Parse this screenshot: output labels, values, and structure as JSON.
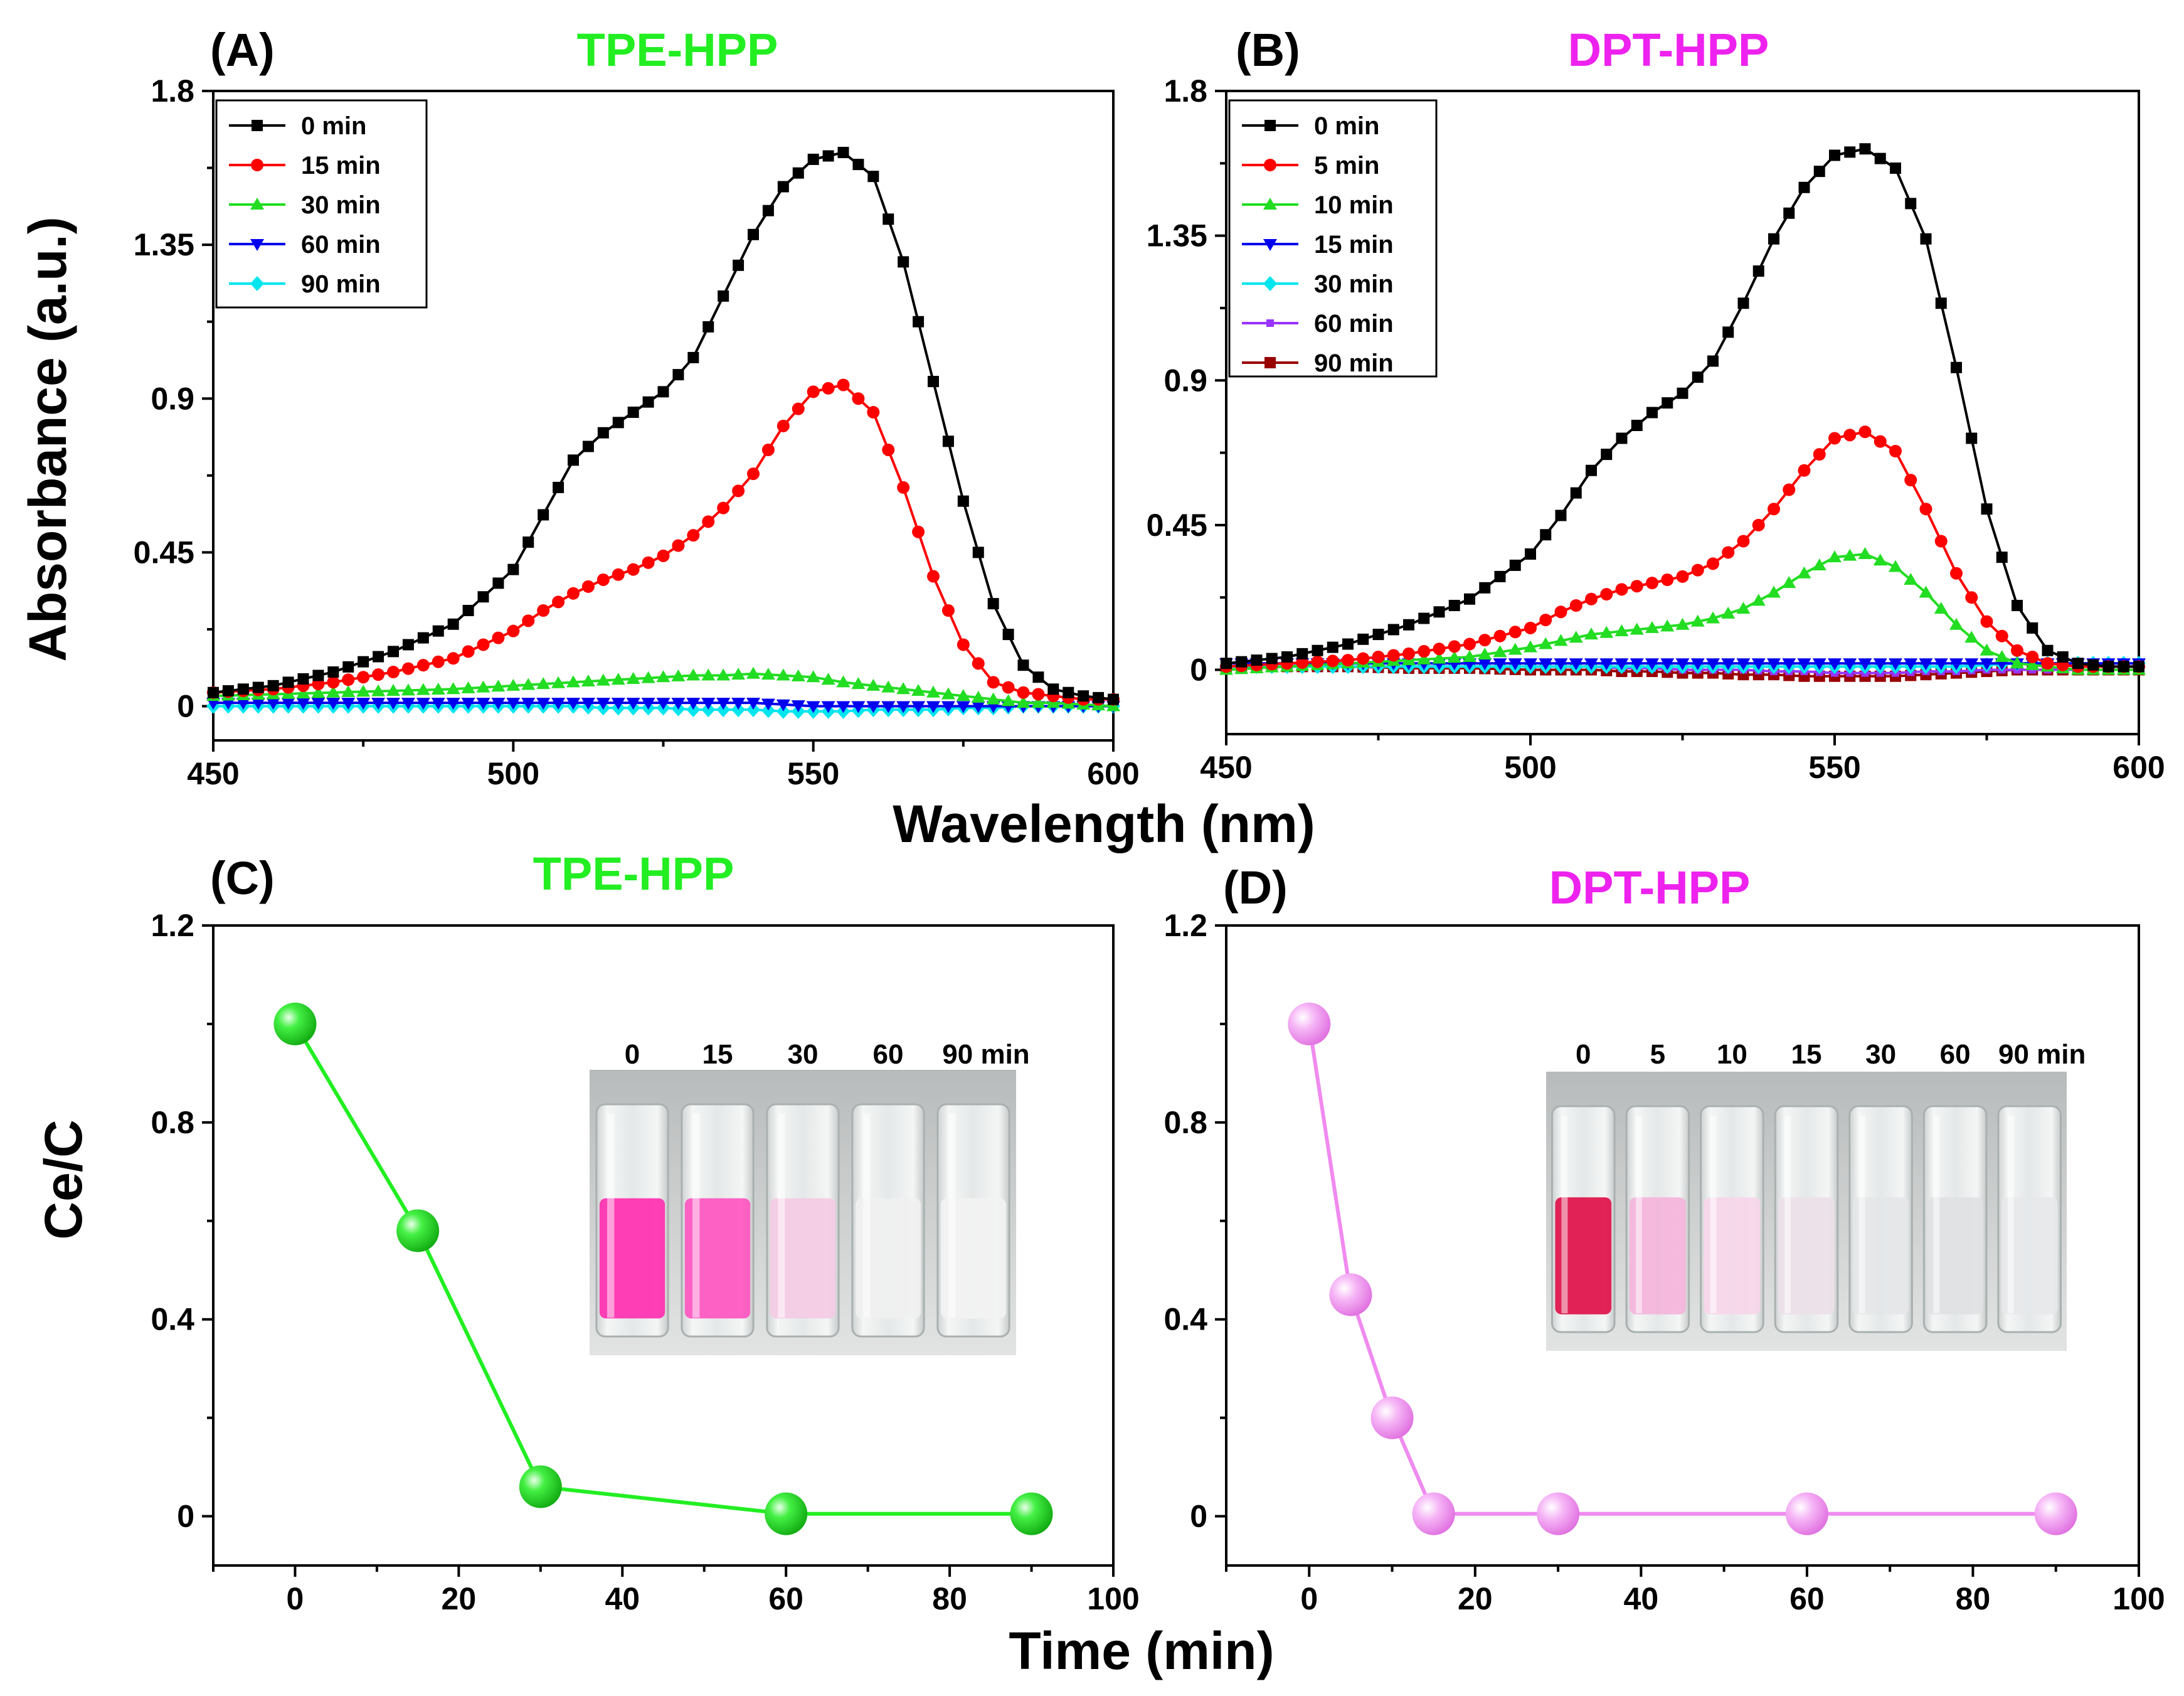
{
  "figure": {
    "shared_xlabel_top": "Wavelength (nm)",
    "shared_xlabel_bottom": "Time (min)",
    "ylabel_top": "Absorbance (a.u.)",
    "ylabel_bottom": "Ce/C"
  },
  "colors": {
    "tpe_title": "#22ee22",
    "dpt_title": "#ee22ee",
    "tpe_line": "#22ee22",
    "dpt_line": "#f08af0"
  },
  "chart_data": [
    {
      "panel": "(A)",
      "type": "line",
      "title": "TPE-HPP",
      "xlabel": "Wavelength (nm)",
      "ylabel": "Absorbance (a.u.)",
      "xlim": [
        450,
        600
      ],
      "ylim": [
        -0.1,
        1.8
      ],
      "xticks": [
        "450",
        "500",
        "550",
        "600"
      ],
      "yticks": [
        "0",
        "0.45",
        "0.9",
        "1.35",
        "1.8"
      ],
      "legend_position": "top-left",
      "x": [
        450,
        460,
        470,
        480,
        490,
        500,
        505,
        510,
        515,
        520,
        525,
        530,
        535,
        540,
        545,
        550,
        555,
        560,
        565,
        570,
        575,
        580,
        585,
        590,
        595,
        600
      ],
      "series": [
        {
          "name": "0 min",
          "color": "#000000",
          "marker": "square",
          "values": [
            0.04,
            0.06,
            0.1,
            0.16,
            0.24,
            0.4,
            0.56,
            0.72,
            0.8,
            0.86,
            0.92,
            1.02,
            1.2,
            1.38,
            1.52,
            1.6,
            1.62,
            1.55,
            1.3,
            0.95,
            0.6,
            0.3,
            0.12,
            0.05,
            0.03,
            0.02
          ]
        },
        {
          "name": "15 min",
          "color": "#ff0000",
          "marker": "circle",
          "values": [
            0.04,
            0.05,
            0.07,
            0.1,
            0.14,
            0.22,
            0.28,
            0.33,
            0.37,
            0.4,
            0.44,
            0.5,
            0.58,
            0.68,
            0.82,
            0.92,
            0.94,
            0.86,
            0.64,
            0.38,
            0.18,
            0.07,
            0.04,
            0.03,
            0.02,
            0.02
          ]
        },
        {
          "name": "30 min",
          "color": "#22dd22",
          "marker": "triangle-up",
          "values": [
            0.03,
            0.035,
            0.04,
            0.045,
            0.05,
            0.06,
            0.065,
            0.07,
            0.075,
            0.08,
            0.085,
            0.09,
            0.09,
            0.095,
            0.09,
            0.085,
            0.07,
            0.06,
            0.05,
            0.04,
            0.03,
            0.02,
            0.01,
            0.01,
            0.005,
            0.0
          ]
        },
        {
          "name": "60 min",
          "color": "#0000ee",
          "marker": "triangle-down",
          "values": [
            0.01,
            0.01,
            0.01,
            0.01,
            0.01,
            0.01,
            0.01,
            0.01,
            0.01,
            0.01,
            0.01,
            0.01,
            0.01,
            0.01,
            0.005,
            0.0,
            0.0,
            0.0,
            0.0,
            0.0,
            0.0,
            0.0,
            0.0,
            0.0,
            0.0,
            0.0
          ]
        },
        {
          "name": "90 min",
          "color": "#00e5ee",
          "marker": "diamond",
          "values": [
            0.0,
            0.0,
            0.0,
            0.0,
            0.0,
            0.0,
            0.0,
            0.0,
            -0.005,
            -0.005,
            -0.005,
            -0.01,
            -0.01,
            -0.01,
            -0.015,
            -0.015,
            -0.015,
            -0.01,
            -0.01,
            -0.01,
            -0.005,
            -0.005,
            0.0,
            0.0,
            0.0,
            0.0
          ]
        }
      ]
    },
    {
      "panel": "(B)",
      "type": "line",
      "title": "DPT-HPP",
      "xlabel": "Wavelength (nm)",
      "ylabel": "",
      "xlim": [
        450,
        600
      ],
      "ylim": [
        -0.2,
        1.8
      ],
      "xticks": [
        "450",
        "500",
        "550",
        "600"
      ],
      "yticks": [
        "0",
        "0.45",
        "0.9",
        "1.35",
        "1.8"
      ],
      "legend_position": "top-left",
      "x": [
        450,
        460,
        470,
        480,
        490,
        500,
        505,
        510,
        515,
        520,
        525,
        530,
        535,
        540,
        545,
        550,
        555,
        560,
        565,
        570,
        575,
        580,
        585,
        590,
        595,
        600
      ],
      "series": [
        {
          "name": "0 min",
          "color": "#000000",
          "marker": "square",
          "values": [
            0.02,
            0.04,
            0.08,
            0.14,
            0.22,
            0.36,
            0.48,
            0.62,
            0.72,
            0.8,
            0.86,
            0.96,
            1.14,
            1.34,
            1.5,
            1.6,
            1.62,
            1.56,
            1.34,
            0.94,
            0.5,
            0.2,
            0.06,
            0.02,
            0.01,
            0.01
          ]
        },
        {
          "name": "5 min",
          "color": "#ff0000",
          "marker": "circle",
          "values": [
            0.01,
            0.02,
            0.03,
            0.05,
            0.08,
            0.13,
            0.18,
            0.22,
            0.25,
            0.27,
            0.29,
            0.33,
            0.4,
            0.5,
            0.62,
            0.72,
            0.74,
            0.68,
            0.5,
            0.3,
            0.15,
            0.06,
            0.02,
            0.01,
            0.01,
            0.01
          ]
        },
        {
          "name": "10 min",
          "color": "#22dd22",
          "marker": "triangle-up",
          "values": [
            0.0,
            0.01,
            0.02,
            0.03,
            0.04,
            0.07,
            0.09,
            0.11,
            0.12,
            0.13,
            0.14,
            0.16,
            0.19,
            0.24,
            0.3,
            0.35,
            0.36,
            0.32,
            0.24,
            0.14,
            0.06,
            0.02,
            0.01,
            0.0,
            0.0,
            0.0
          ]
        },
        {
          "name": "15 min",
          "color": "#0000ee",
          "marker": "triangle-down",
          "values": [
            0.02,
            0.02,
            0.02,
            0.02,
            0.02,
            0.02,
            0.02,
            0.02,
            0.02,
            0.02,
            0.02,
            0.02,
            0.02,
            0.02,
            0.02,
            0.02,
            0.02,
            0.02,
            0.02,
            0.02,
            0.02,
            0.02,
            0.02,
            0.02,
            0.02,
            0.02
          ]
        },
        {
          "name": "30 min",
          "color": "#00e5ee",
          "marker": "diamond",
          "values": [
            0.01,
            0.01,
            0.01,
            0.01,
            0.01,
            0.01,
            0.01,
            0.01,
            0.01,
            0.01,
            0.01,
            0.01,
            0.01,
            0.01,
            0.01,
            0.01,
            0.01,
            0.01,
            0.01,
            0.01,
            0.015,
            0.02,
            0.02,
            0.02,
            0.02,
            0.02
          ]
        },
        {
          "name": "60 min",
          "color": "#9933ff",
          "marker": "square-small",
          "values": [
            0.01,
            0.01,
            0.01,
            0.01,
            0.01,
            0.01,
            0.01,
            0.01,
            0.005,
            0.005,
            0.0,
            0.0,
            0.0,
            -0.005,
            -0.005,
            -0.01,
            -0.01,
            -0.01,
            -0.005,
            -0.005,
            0.0,
            0.0,
            0.0,
            0.0,
            0.0,
            0.0
          ]
        },
        {
          "name": "90 min",
          "color": "#990000",
          "marker": "square",
          "values": [
            0.01,
            0.01,
            0.01,
            0.005,
            0.005,
            0.0,
            0.0,
            0.0,
            -0.005,
            -0.005,
            -0.01,
            -0.01,
            -0.015,
            -0.015,
            -0.02,
            -0.02,
            -0.02,
            -0.02,
            -0.015,
            -0.01,
            -0.005,
            0.0,
            0.0,
            0.0,
            0.0,
            0.0
          ]
        }
      ]
    },
    {
      "panel": "(C)",
      "type": "line",
      "title": "TPE-HPP",
      "xlabel": "Time (min)",
      "ylabel": "Ce/C",
      "xlim": [
        -10,
        100
      ],
      "ylim": [
        -0.1,
        1.2
      ],
      "xticks": [
        "0",
        "20",
        "40",
        "60",
        "80",
        "100"
      ],
      "yticks": [
        "0",
        "0.4",
        "0.8",
        "1.2"
      ],
      "x": [
        0,
        15,
        30,
        60,
        90
      ],
      "series": [
        {
          "name": "TPE-HPP",
          "color": "#22ee22",
          "marker": "sphere",
          "values": [
            1.0,
            0.58,
            0.06,
            0.005,
            0.005
          ]
        }
      ],
      "inset_labels": [
        "0",
        "15",
        "30",
        "60",
        "90 min"
      ]
    },
    {
      "panel": "(D)",
      "type": "line",
      "title": "DPT-HPP",
      "xlabel": "Time (min)",
      "ylabel": "",
      "xlim": [
        -10,
        100
      ],
      "ylim": [
        -0.1,
        1.2
      ],
      "xticks": [
        "0",
        "20",
        "40",
        "60",
        "80",
        "100"
      ],
      "yticks": [
        "0",
        "0.4",
        "0.8",
        "1.2"
      ],
      "x": [
        0,
        5,
        10,
        15,
        30,
        60,
        90
      ],
      "series": [
        {
          "name": "DPT-HPP",
          "color": "#f08af0",
          "marker": "sphere",
          "values": [
            1.0,
            0.45,
            0.2,
            0.005,
            0.005,
            0.005,
            0.005
          ]
        }
      ],
      "inset_labels": [
        "0",
        "5",
        "10",
        "15",
        "30",
        "60",
        "90 min"
      ]
    }
  ]
}
